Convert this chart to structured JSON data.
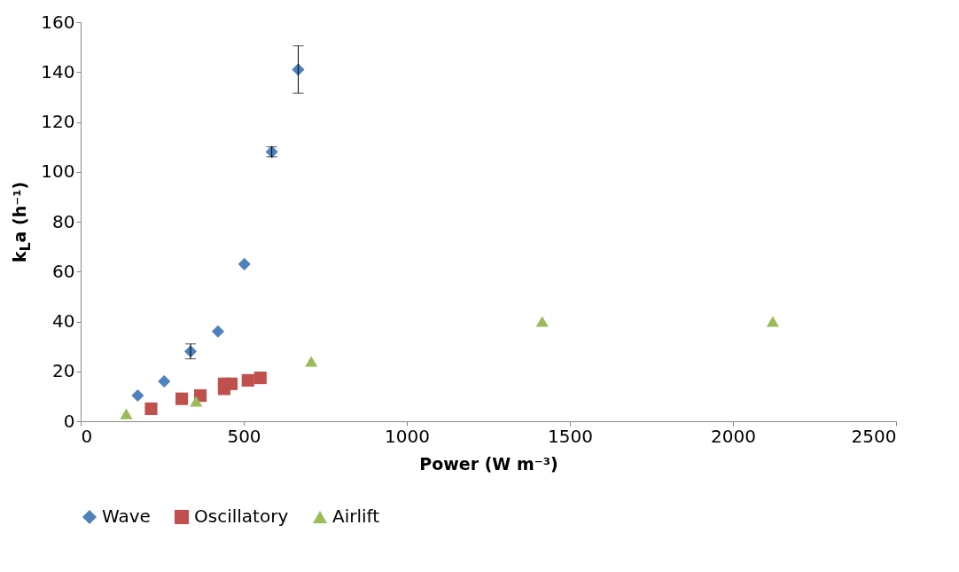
{
  "chart_data": {
    "type": "scatter",
    "xlabel": "Power (W m⁻³)",
    "ylabel": "k$_{L}$a (h⁻¹)",
    "xlim": [
      0,
      2500
    ],
    "xticks": [
      0,
      500,
      1000,
      1500,
      2000,
      2500
    ],
    "ylim": [
      0,
      160
    ],
    "yticks": [
      0,
      20,
      40,
      60,
      80,
      100,
      120,
      140,
      160
    ],
    "grid": false,
    "legend": "bottom",
    "series": [
      {
        "name": "Wave",
        "color": "#4f81bd",
        "marker": "diamond",
        "x": [
          175,
          256,
          337,
          421,
          502,
          586,
          667
        ],
        "values": [
          10.3,
          16,
          28,
          36,
          63,
          108,
          141
        ],
        "errors": [
          null,
          null,
          3,
          null,
          null,
          2,
          9.5
        ]
      },
      {
        "name": "Oscillatory",
        "color": "#c0504d",
        "marker": "square",
        "x": [
          216,
          310,
          367,
          440,
          440,
          462,
          513,
          551
        ],
        "values": [
          5,
          9,
          10.3,
          13,
          15,
          15,
          16.4,
          17.4
        ]
      },
      {
        "name": "Airlift",
        "color": "#9bbb59",
        "marker": "triangle",
        "x": [
          140,
          354,
          707,
          1415,
          2122
        ],
        "values": [
          3,
          8,
          24,
          40,
          40
        ]
      }
    ]
  }
}
